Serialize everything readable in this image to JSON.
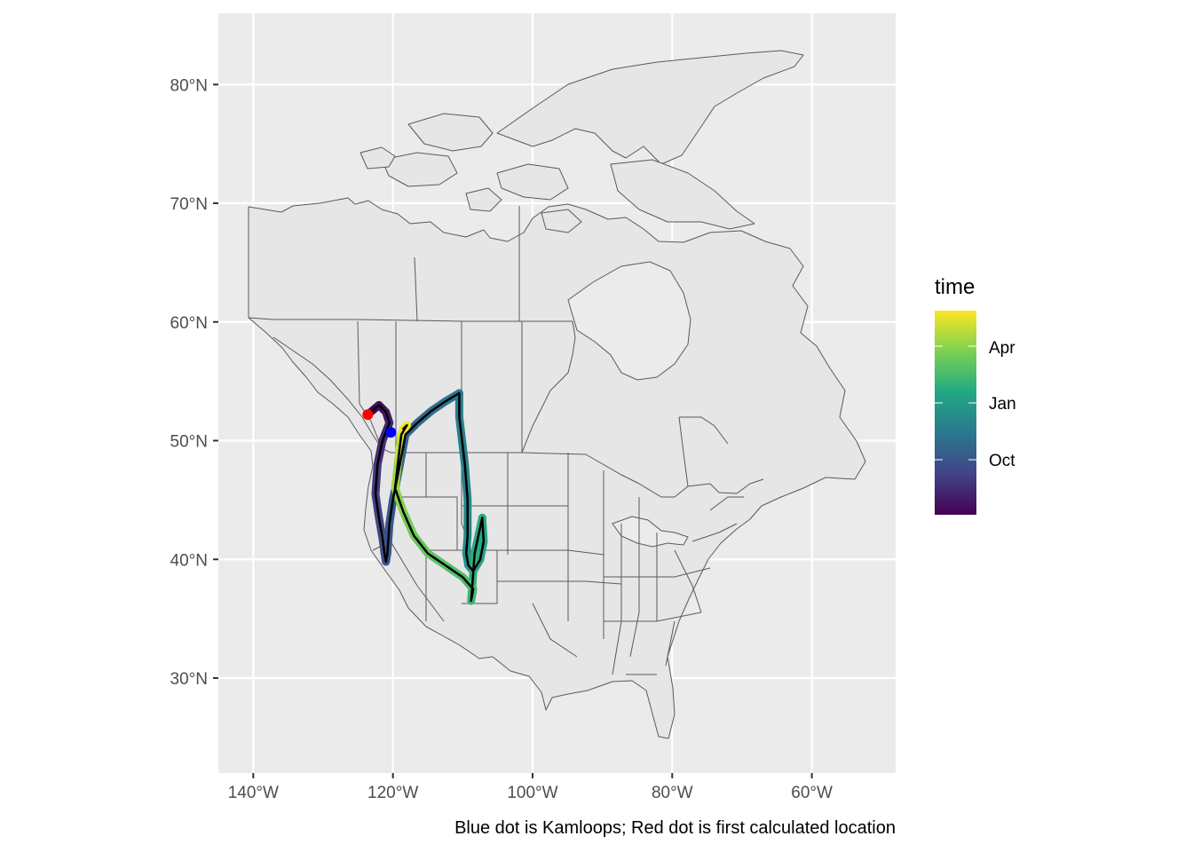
{
  "map": {
    "x_axis": {
      "labels": [
        "140°W",
        "120°W",
        "100°W",
        "80°W",
        "60°W"
      ],
      "values": [
        -140,
        -120,
        -100,
        -80,
        -60
      ],
      "range": [
        -145,
        -48
      ]
    },
    "y_axis": {
      "labels": [
        "30°N",
        "40°N",
        "50°N",
        "60°N",
        "70°N",
        "80°N"
      ],
      "values": [
        30,
        40,
        50,
        60,
        70,
        80
      ],
      "range": [
        22,
        86
      ]
    },
    "caption": "Blue dot is Kamloops; Red dot is first calculated location",
    "legend": {
      "title": "time",
      "labels": [
        "Apr",
        "Jan",
        "Oct"
      ],
      "position": "right",
      "colors": [
        "#fde725",
        "#7ad151",
        "#22a884",
        "#2a788e",
        "#414487",
        "#440154"
      ]
    },
    "colors": {
      "panel": "#ebebeb",
      "land": "#e6e6e6",
      "land_border": "#5a5a5a",
      "track_outline": "#000000",
      "kamloops_dot": "#0000ff",
      "first_location_dot": "#ff0000"
    }
  },
  "chart_data": {
    "type": "scatter",
    "title": "",
    "xlabel": "",
    "ylabel": "",
    "xlim": [
      -145,
      -48
    ],
    "ylim": [
      22,
      86
    ],
    "grid": true,
    "legend_position": "right",
    "colorbar": {
      "variable": "time",
      "ticks": [
        "Oct",
        "Jan",
        "Apr"
      ],
      "ticks_fraction": [
        0.2,
        0.47,
        0.73
      ]
    },
    "points": [
      {
        "label": "Kamloops",
        "lon": -120.3,
        "lat": 50.7,
        "color": "#0000ff"
      },
      {
        "label": "first calculated location",
        "lon": -123.6,
        "lat": 52.2,
        "color": "#ff0000"
      }
    ],
    "track": {
      "lon": [
        -123.6,
        -122.0,
        -121.0,
        -120.5,
        -121.5,
        -122.2,
        -122.5,
        -122.0,
        -121.5,
        -121.2,
        -121.0,
        -120.8,
        -120.5,
        -120.0,
        -119.0,
        -118.2,
        -116.5,
        -114.5,
        -112.5,
        -110.5,
        -110.5,
        -109.7,
        -109.3,
        -109.3,
        -109.5,
        -109.2,
        -108.5,
        -107.5,
        -107.0,
        -107.2,
        -108.3,
        -108.6,
        -108.8,
        -108.5,
        -110.0,
        -112.5,
        -115.0,
        -117.0,
        -118.5,
        -119.7,
        -119.2,
        -118.8,
        -118.0,
        -118.5
      ],
      "lat": [
        52.2,
        53.0,
        52.4,
        51.5,
        50.0,
        48.0,
        45.5,
        43.5,
        41.8,
        40.5,
        39.8,
        40.5,
        43.0,
        45.0,
        48.0,
        50.5,
        51.5,
        52.5,
        53.3,
        54.0,
        52.0,
        48.0,
        45.0,
        42.0,
        40.5,
        39.5,
        39.0,
        40.0,
        41.5,
        43.5,
        40.5,
        38.0,
        36.5,
        37.5,
        38.5,
        39.5,
        40.5,
        42.0,
        44.0,
        46.0,
        48.5,
        50.5,
        51.3,
        51.0
      ],
      "time_fraction": [
        0.0,
        0.03,
        0.06,
        0.09,
        0.12,
        0.15,
        0.18,
        0.2,
        0.22,
        0.24,
        0.25,
        0.26,
        0.27,
        0.28,
        0.3,
        0.32,
        0.34,
        0.36,
        0.38,
        0.4,
        0.42,
        0.44,
        0.46,
        0.48,
        0.5,
        0.52,
        0.54,
        0.56,
        0.58,
        0.6,
        0.62,
        0.64,
        0.66,
        0.68,
        0.7,
        0.72,
        0.74,
        0.76,
        0.8,
        0.84,
        0.88,
        0.92,
        0.96,
        1.0
      ]
    }
  }
}
